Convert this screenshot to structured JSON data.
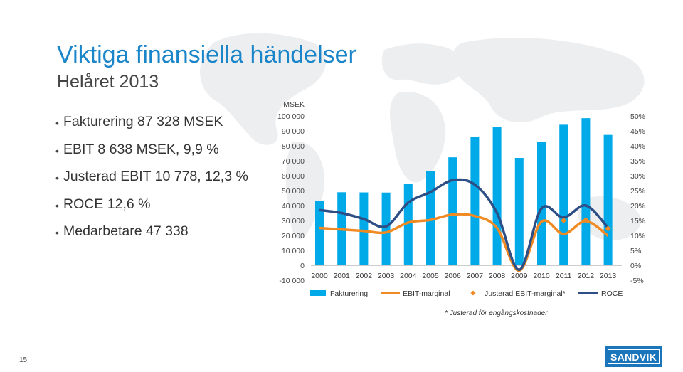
{
  "title": "Viktiga finansiella händelser",
  "subtitle": "Helåret 2013",
  "bullets": [
    "Fakturering 87 328 MSEK",
    "EBIT 8 638 MSEK, 9,9 %",
    "Justerad EBIT 10 778, 12,3 %",
    "ROCE 12,6 %",
    "Medarbetare 47 338"
  ],
  "footnote": "* Justerad för engångskostnader",
  "page_number": "15",
  "logo_text": "SANDVIK",
  "colors": {
    "title": "#1a85c9",
    "fakturering": "#00a9e8",
    "ebit_marginal": "#f28a23",
    "justerad": "#f28a23",
    "roce": "#2e4f86"
  },
  "chart_data": {
    "type": "bar",
    "unit_label": "MSEK",
    "categories": [
      "2000",
      "2001",
      "2002",
      "2003",
      "2004",
      "2005",
      "2006",
      "2007",
      "2008",
      "2009",
      "2010",
      "2011",
      "2012",
      "2013"
    ],
    "left_axis": {
      "ylim": [
        -10000,
        100000
      ],
      "ticks": [
        -10000,
        0,
        10000,
        20000,
        30000,
        40000,
        50000,
        60000,
        70000,
        80000,
        90000,
        100000
      ],
      "tick_labels": [
        "-10 000",
        "0",
        "10 000",
        "20 000",
        "30 000",
        "40 000",
        "50 000",
        "60 000",
        "70 000",
        "80 000",
        "90 000",
        "100 000"
      ]
    },
    "right_axis": {
      "ylim": [
        -5,
        50
      ],
      "ticks": [
        -5,
        0,
        5,
        10,
        15,
        20,
        25,
        30,
        35,
        40,
        45,
        50
      ],
      "tick_labels": [
        "-5%",
        "0%",
        "5%",
        "10%",
        "15%",
        "20%",
        "25%",
        "30%",
        "35%",
        "40%",
        "45%",
        "50%"
      ]
    },
    "series": [
      {
        "name": "Fakturering",
        "type": "bar",
        "axis": "left",
        "values": [
          43000,
          48900,
          48800,
          48700,
          54600,
          63000,
          72300,
          86200,
          92700,
          71900,
          82600,
          94100,
          98500,
          87300
        ]
      },
      {
        "name": "EBIT-marginal",
        "type": "line",
        "axis": "right",
        "values": [
          12.5,
          12.0,
          11.5,
          11.0,
          14.3,
          15.2,
          17.0,
          16.5,
          12.5,
          -1.8,
          14.6,
          10.5,
          14.8,
          9.9
        ]
      },
      {
        "name": "Justerad EBIT-marginal*",
        "type": "marker",
        "axis": "right",
        "values": [
          null,
          null,
          null,
          null,
          null,
          null,
          null,
          null,
          null,
          null,
          null,
          15.0,
          15.2,
          12.3
        ]
      },
      {
        "name": "ROCE",
        "type": "line",
        "axis": "right",
        "values": [
          18.5,
          17.5,
          15.5,
          13.0,
          21.0,
          24.5,
          28.5,
          27.0,
          17.5,
          -1.5,
          19.0,
          16.0,
          20.0,
          12.6
        ]
      }
    ],
    "legend_position": "bottom"
  }
}
